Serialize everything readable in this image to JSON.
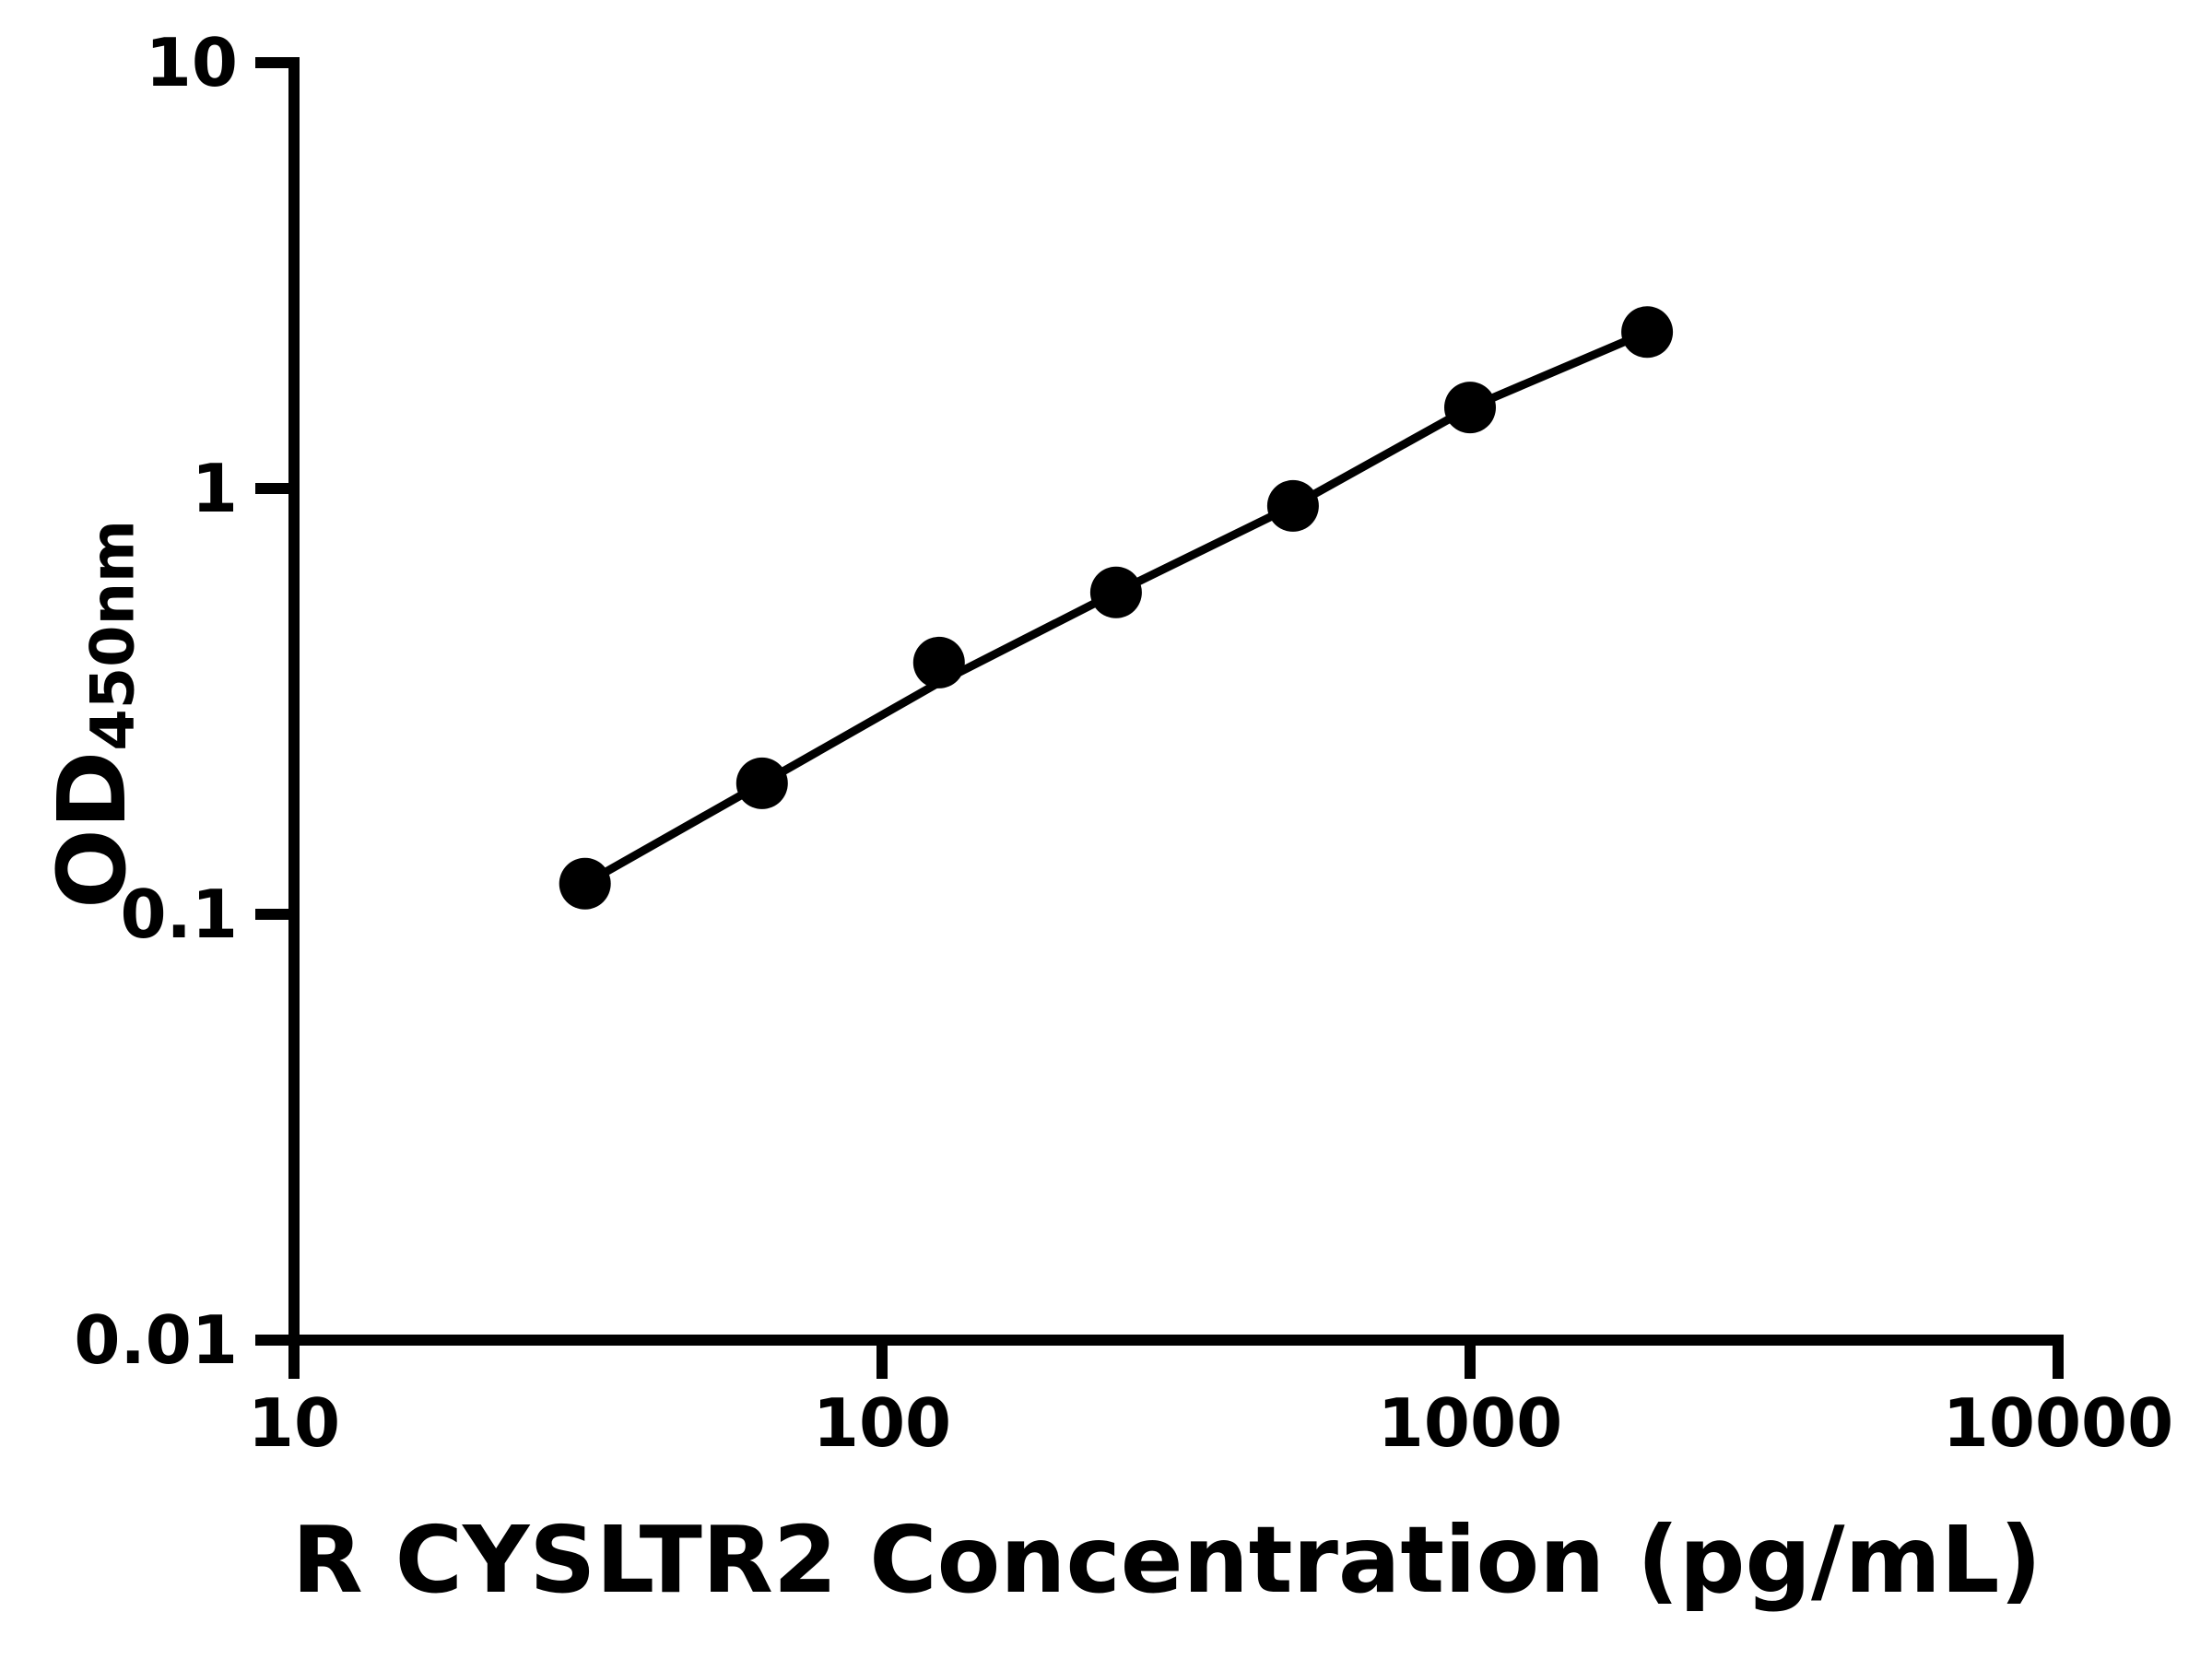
{
  "figure": {
    "background_color": "#ffffff",
    "ink_color": "#000000"
  },
  "chart_data": {
    "type": "scatter",
    "title": "",
    "xlabel": "R CYSLTR2 Concentration (pg/mL)",
    "ylabel_main": "OD",
    "ylabel_sub": "450nm",
    "x_scale": "log",
    "y_scale": "log",
    "xlim": [
      10,
      10000
    ],
    "ylim": [
      0.01,
      10
    ],
    "x_ticks": [
      10,
      100,
      1000,
      10000
    ],
    "x_tick_labels": [
      "10",
      "100",
      "1000",
      "10000"
    ],
    "y_ticks": [
      10,
      1,
      0.1,
      0.01
    ],
    "y_tick_labels": [
      "10",
      "1",
      "0.1",
      "0.01"
    ],
    "grid": false,
    "legend": "none",
    "series": [
      {
        "name": "standard-curve-points",
        "marker": "filled-circle",
        "color": "#000000",
        "x": [
          31.25,
          62.5,
          125,
          250,
          500,
          1000,
          2000
        ],
        "y": [
          0.118,
          0.203,
          0.39,
          0.57,
          0.91,
          1.55,
          2.33
        ]
      },
      {
        "name": "fit-line",
        "marker": "none",
        "color": "#000000",
        "x": [
          31.25,
          62.5,
          125,
          250,
          500,
          1000,
          2000
        ],
        "y": [
          0.118,
          0.203,
          0.35,
          0.57,
          0.91,
          1.55,
          2.33
        ]
      }
    ]
  }
}
